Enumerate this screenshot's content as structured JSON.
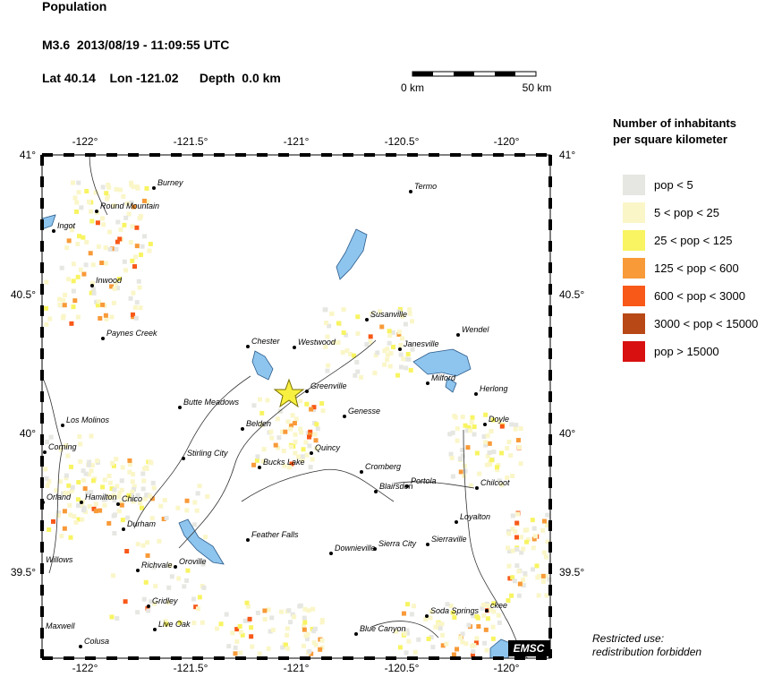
{
  "header": {
    "title": "Population",
    "event": "M3.6  2013/08/19 - 11:09:55 UTC",
    "location": "Lat 40.14    Lon -121.02      Depth  0.0 km"
  },
  "scale": {
    "labels": [
      "0 km",
      "50 km"
    ]
  },
  "map": {
    "lon_ticks": [
      "-122°",
      "-121.5°",
      "-121°",
      "-120.5°",
      "-120°"
    ],
    "lat_ticks": [
      "41°",
      "40.5°",
      "40°",
      "39.5°"
    ],
    "towns": [
      "Burney",
      "Round Mountain",
      "Ingot",
      "Inwood",
      "Paynes Creek",
      "Chester",
      "Westwood",
      "Termo",
      "Susanville",
      "Wendel",
      "Janesville",
      "Milford",
      "Herlong",
      "Greenville",
      "Genesse",
      "Doyle",
      "Butte Meadows",
      "Los Molinos",
      "Belden",
      "Corning",
      "Quincy",
      "Stirling City",
      "Bucks Lake",
      "Cromberg",
      "Portola",
      "Blairsden",
      "Chilcoot",
      "Orland",
      "Hamilton",
      "Chico",
      "Durham",
      "Feather Falls",
      "Loyalton",
      "Sierraville",
      "Sierra City",
      "Downieville",
      "Willows",
      "Richvale",
      "Oroville",
      "Gridley",
      "Live Oak",
      "Maxwell",
      "Soda Springs",
      "ckee",
      "Blue Canyon",
      "Colusa"
    ],
    "badge": "EMSC"
  },
  "legend": {
    "title": "Number of inhabitants per square kilometer",
    "entries": [
      {
        "label": "pop < 5",
        "color": "#e6e6e2"
      },
      {
        "label": "5 < pop < 25",
        "color": "#faf6c8"
      },
      {
        "label": "25 < pop < 125",
        "color": "#f8f462"
      },
      {
        "label": "125 < pop < 600",
        "color": "#f89a38"
      },
      {
        "label": "600 < pop < 3000",
        "color": "#f85818"
      },
      {
        "label": "3000 < pop < 15000",
        "color": "#b84816"
      },
      {
        "label": "pop > 15000",
        "color": "#d81010"
      }
    ]
  },
  "footer": "Restricted use: redistribution forbidden"
}
